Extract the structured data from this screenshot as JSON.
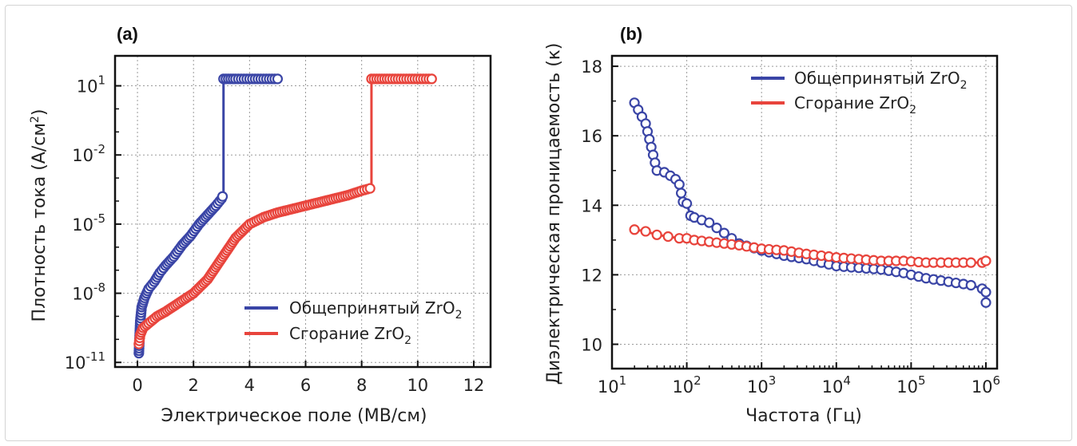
{
  "chart_data": [
    {
      "type": "line",
      "panel_label": "(a)",
      "xlabel": "Электрическое поле (МВ/см)",
      "ylabel": "Плотность тока (А/см",
      "ylabel_sup": "2",
      "ylabel_end": ")",
      "xscale": "linear",
      "yscale": "log",
      "xlim": [
        -0.8,
        12.6
      ],
      "ylim": [
        -11.2,
        2.3
      ],
      "xticks": [
        0,
        2,
        4,
        6,
        8,
        10,
        12
      ],
      "xtick_labels": [
        "0",
        "2",
        "4",
        "6",
        "8",
        "10",
        "12"
      ],
      "yticks": [
        {
          "base": "10",
          "exp": "1",
          "value": 1
        },
        {
          "base": "10",
          "exp": "-2",
          "value": -2
        },
        {
          "base": "10",
          "exp": "-5",
          "value": -5
        },
        {
          "base": "10",
          "exp": "-8",
          "value": -8
        },
        {
          "base": "10",
          "exp": "-11",
          "value": -11
        }
      ],
      "grid": true,
      "legend": {
        "position": "bottom-right",
        "entries": [
          {
            "name": "Общепринятый ZrO",
            "sub": "2",
            "color": "#3a45a6"
          },
          {
            "name": "Сгорание ZrO",
            "sub": "2",
            "color": "#e8443c"
          }
        ]
      },
      "series": [
        {
          "name": "Общепринятый ZrO2",
          "color": "#3a45a6",
          "x": [
            0.05,
            0.1,
            0.15,
            0.25,
            0.4,
            0.6,
            0.8,
            1.0,
            1.3,
            1.6,
            1.9,
            2.2,
            2.5,
            2.8,
            3.0,
            3.07,
            3.07,
            3.5,
            4.0,
            4.5,
            5.0
          ],
          "log_y": [
            -10.6,
            -9.2,
            -8.6,
            -8.2,
            -7.8,
            -7.5,
            -7.1,
            -6.8,
            -6.4,
            -5.9,
            -5.5,
            -5.0,
            -4.6,
            -4.2,
            -3.9,
            -3.7,
            1.3,
            1.3,
            1.3,
            1.3,
            1.3
          ]
        },
        {
          "name": "Сгорание ZrO2",
          "color": "#e8443c",
          "x": [
            0.05,
            0.1,
            0.2,
            0.4,
            0.7,
            1.0,
            1.5,
            2.0,
            2.5,
            3.0,
            3.5,
            4.0,
            4.5,
            5.0,
            5.5,
            6.0,
            6.5,
            7.0,
            7.5,
            8.0,
            8.3,
            8.35,
            8.35,
            9.0,
            9.5,
            10.0,
            10.5
          ],
          "log_y": [
            -10.2,
            -9.8,
            -9.5,
            -9.3,
            -9.0,
            -8.8,
            -8.4,
            -8.0,
            -7.4,
            -6.5,
            -5.6,
            -5.0,
            -4.7,
            -4.5,
            -4.35,
            -4.2,
            -4.05,
            -3.9,
            -3.75,
            -3.55,
            -3.45,
            -3.4,
            1.3,
            1.3,
            1.3,
            1.3,
            1.3
          ]
        }
      ]
    },
    {
      "type": "line",
      "panel_label": "(b)",
      "xlabel": "Частота (Гц)",
      "ylabel": "Диэлектрическая проницаемость (κ)",
      "xscale": "log",
      "yscale": "linear",
      "xlim": [
        1,
        6.15
      ],
      "ylim": [
        9.3,
        18.3
      ],
      "xticks": [
        {
          "base": "10",
          "exp": "1",
          "value": 1
        },
        {
          "base": "10",
          "exp": "2",
          "value": 2
        },
        {
          "base": "10",
          "exp": "3",
          "value": 3
        },
        {
          "base": "10",
          "exp": "4",
          "value": 4
        },
        {
          "base": "10",
          "exp": "5",
          "value": 5
        },
        {
          "base": "10",
          "exp": "6",
          "value": 6
        }
      ],
      "yticks": [
        10,
        12,
        14,
        16,
        18
      ],
      "ytick_labels": [
        "10",
        "12",
        "14",
        "16",
        "18"
      ],
      "grid": true,
      "legend": {
        "position": "top-right",
        "entries": [
          {
            "name": "Общепринятый ZrO",
            "sub": "2",
            "color": "#3a45a6"
          },
          {
            "name": "Сгорание ZrO",
            "sub": "2",
            "color": "#e8443c"
          }
        ]
      },
      "series": [
        {
          "name": "Общепринятый ZrO2",
          "color": "#3a45a6",
          "log_x": [
            1.3,
            1.45,
            1.6,
            1.7,
            1.78,
            1.85,
            1.9,
            1.95,
            2.0,
            2.05,
            2.1,
            2.3,
            2.5,
            2.7,
            3.0,
            3.3,
            3.6,
            4.0,
            4.3,
            4.6,
            4.9,
            5.2,
            5.5,
            5.8,
            5.95,
            6.0,
            6.0
          ],
          "y": [
            16.95,
            16.35,
            15.0,
            14.95,
            14.85,
            14.75,
            14.6,
            14.1,
            14.05,
            13.7,
            13.65,
            13.5,
            13.2,
            12.9,
            12.7,
            12.55,
            12.45,
            12.25,
            12.2,
            12.15,
            12.05,
            11.9,
            11.8,
            11.7,
            11.6,
            11.5,
            11.2
          ]
        },
        {
          "name": "Сгорание ZrO2",
          "color": "#e8443c",
          "log_x": [
            1.3,
            1.45,
            1.6,
            1.75,
            1.9,
            2.0,
            2.1,
            2.3,
            2.5,
            2.7,
            3.0,
            3.3,
            3.6,
            4.0,
            4.3,
            4.6,
            4.9,
            5.2,
            5.5,
            5.8,
            5.95,
            6.0
          ],
          "y": [
            13.3,
            13.25,
            13.15,
            13.1,
            13.05,
            13.05,
            13.0,
            12.95,
            12.9,
            12.85,
            12.75,
            12.7,
            12.6,
            12.5,
            12.45,
            12.4,
            12.4,
            12.35,
            12.35,
            12.35,
            12.35,
            12.4
          ]
        }
      ]
    }
  ]
}
